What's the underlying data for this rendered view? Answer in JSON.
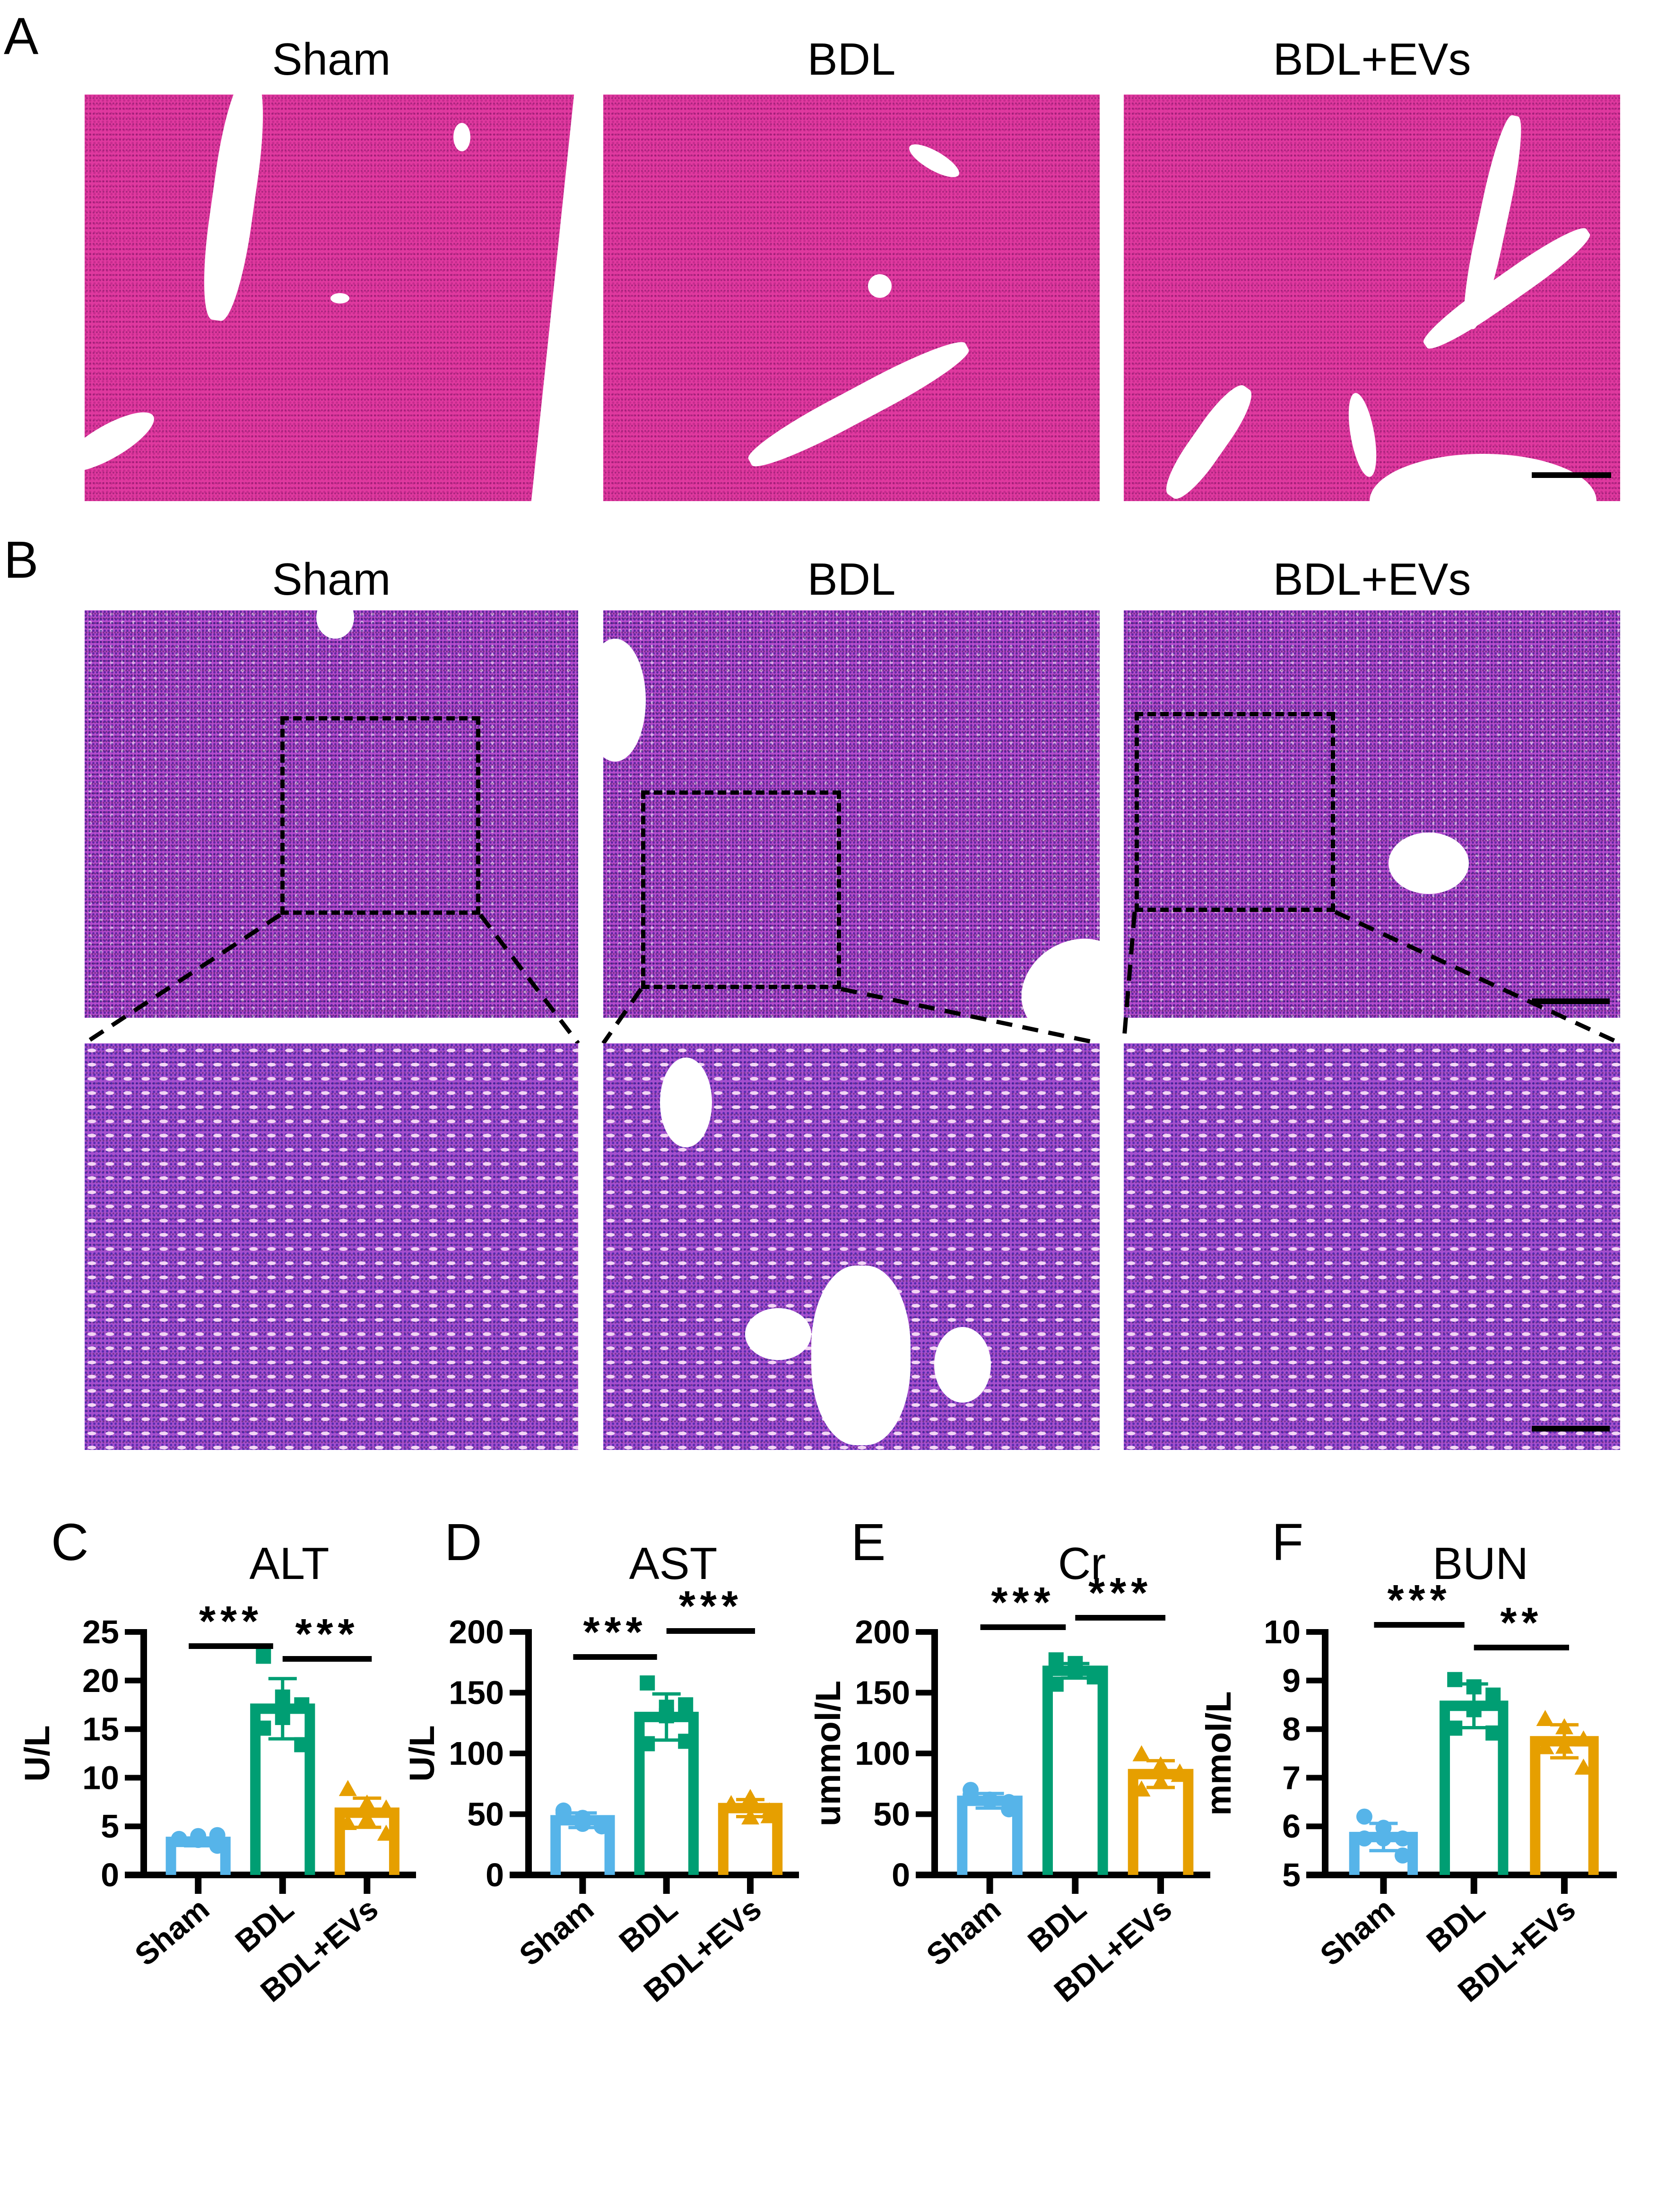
{
  "figure": {
    "panel_a": {
      "letter": "A",
      "stain": "H&E liver",
      "titles": [
        "Sham",
        "BDL",
        "BDL+EVs"
      ],
      "scale_bar": true
    },
    "panel_b": {
      "letter": "B",
      "stain": "H&E kidney",
      "titles": [
        "Sham",
        "BDL",
        "BDL+EVs"
      ],
      "scale_bar": true,
      "zoom_insets": true
    }
  },
  "colors": {
    "sham": "#56B4E9",
    "bdl": "#009E73",
    "bdl_evs": "#E69F00",
    "axis": "#000000"
  },
  "chart_data": [
    {
      "panel": "C",
      "type": "bar",
      "title": "ALT",
      "xlabel": "",
      "ylabel": "U/L",
      "categories": [
        "Sham",
        "BDL",
        "BDL+EVs"
      ],
      "values": [
        3.4,
        17.1,
        6.4
      ],
      "error_sd": [
        0.4,
        3.1,
        1.5
      ],
      "points": [
        [
          3.7,
          4.0,
          4.1,
          3.6,
          3.7,
          3.0
        ],
        [
          22.5,
          18.3,
          17.5,
          16.2,
          15.1,
          13.4
        ],
        [
          8.8,
          7.3,
          6.8,
          5.7,
          5.3,
          4.2
        ]
      ],
      "markers": [
        "circle",
        "square",
        "triangle"
      ],
      "yticks": [
        0,
        5,
        10,
        15,
        20,
        25
      ],
      "ylim": [
        0,
        25
      ],
      "significance": [
        {
          "from": "Sham",
          "to": "BDL",
          "label": "***"
        },
        {
          "from": "BDL",
          "to": "BDL+EVs",
          "label": "***"
        }
      ]
    },
    {
      "panel": "D",
      "type": "bar",
      "title": "AST",
      "xlabel": "",
      "ylabel": "U/L",
      "categories": [
        "Sham",
        "BDL",
        "BDL+EVs"
      ],
      "values": [
        45,
        130,
        55
      ],
      "error_sd": [
        6,
        19,
        7
      ],
      "points": [
        [
          53,
          47,
          40,
          42,
          51,
          40
        ],
        [
          158,
          138,
          140,
          131,
          108,
          110
        ],
        [
          57,
          47,
          52,
          63,
          58,
          48
        ]
      ],
      "markers": [
        "circle",
        "square",
        "triangle"
      ],
      "yticks": [
        0,
        50,
        100,
        150,
        200
      ],
      "ylim": [
        0,
        200
      ],
      "significance": [
        {
          "from": "Sham",
          "to": "BDL",
          "label": "***"
        },
        {
          "from": "BDL",
          "to": "BDL+EVs",
          "label": "***"
        }
      ]
    },
    {
      "panel": "E",
      "type": "bar",
      "title": "Cr",
      "xlabel": "",
      "ylabel": "ummol/L",
      "categories": [
        "Sham",
        "BDL",
        "BDL+EVs"
      ],
      "values": [
        61,
        168,
        83
      ],
      "error_sd": [
        6,
        6,
        11
      ],
      "points": [
        [
          70,
          62,
          54,
          61,
          66,
          60
        ],
        [
          177,
          168,
          163,
          174,
          157,
          166
        ],
        [
          99,
          90,
          84,
          76,
          70,
          82
        ]
      ],
      "markers": [
        "circle",
        "square",
        "triangle"
      ],
      "yticks": [
        0,
        50,
        100,
        150,
        200
      ],
      "ylim": [
        0,
        200
      ],
      "significance": [
        {
          "from": "Sham",
          "to": "BDL",
          "label": "***"
        },
        {
          "from": "BDL",
          "to": "BDL+EVs",
          "label": "***"
        }
      ]
    },
    {
      "panel": "F",
      "type": "bar",
      "title": "BUN",
      "xlabel": "",
      "ylabel": "mmol/L",
      "categories": [
        "Sham",
        "BDL",
        "BDL+EVs"
      ],
      "values": [
        5.78,
        8.48,
        7.75
      ],
      "error_sd": [
        0.28,
        0.45,
        0.34
      ],
      "points": [
        [
          6.2,
          5.97,
          5.75,
          5.75,
          5.75,
          5.4
        ],
        [
          9.02,
          8.87,
          8.7,
          8.4,
          8.02,
          7.92
        ],
        [
          8.2,
          8.03,
          7.78,
          7.63,
          7.62,
          7.2
        ]
      ],
      "markers": [
        "circle",
        "square",
        "triangle"
      ],
      "yticks": [
        5,
        6,
        7,
        8,
        9,
        10
      ],
      "ylim": [
        5,
        10
      ],
      "significance": [
        {
          "from": "Sham",
          "to": "BDL",
          "label": "***"
        },
        {
          "from": "BDL",
          "to": "BDL+EVs",
          "label": "**"
        }
      ]
    }
  ]
}
